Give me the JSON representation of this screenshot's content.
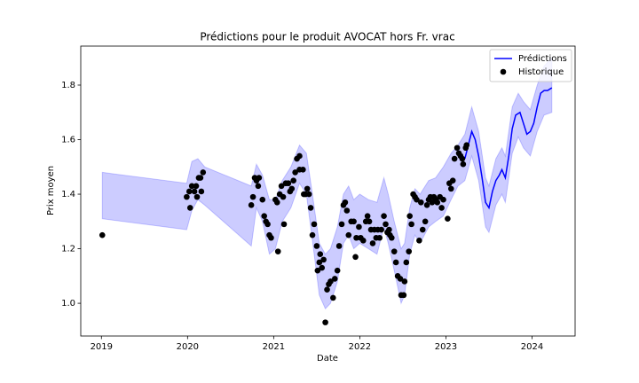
{
  "chart_data": {
    "type": "line",
    "title": "Prédictions pour le produit AVOCAT hors Fr. vrac",
    "xlabel": "Date",
    "ylabel": "Prix moyen",
    "xlim": [
      2018.76,
      2024.5
    ],
    "ylim": [
      0.88,
      1.943
    ],
    "xticks": [
      2019,
      2020,
      2021,
      2022,
      2023,
      2024
    ],
    "yticks": [
      {
        "value": 1,
        "label": "1.0"
      },
      1.2,
      1.4,
      1.6,
      1.8
    ],
    "grid": false,
    "legend": "upper right",
    "band": {
      "color": "#0000ff",
      "x": [
        2019.01,
        2019.99,
        2020.05,
        2020.12,
        2020.2,
        2020.74,
        2020.8,
        2020.87,
        2020.95,
        2021.02,
        2021.1,
        2021.2,
        2021.3,
        2021.38,
        2021.45,
        2021.53,
        2021.6,
        2021.66,
        2021.74,
        2021.81,
        2021.87,
        2021.93,
        2022.0,
        2022.1,
        2022.2,
        2022.28,
        2022.33,
        2022.4,
        2022.48,
        2022.52,
        2022.58,
        2022.64,
        2022.7,
        2022.8,
        2022.88,
        2022.97,
        2023.06,
        2023.14,
        2023.22,
        2023.3,
        2023.38,
        2023.46,
        2023.5,
        2023.58,
        2023.65,
        2023.69,
        2023.77,
        2023.84,
        2023.9,
        2023.98,
        2024.06,
        2024.14,
        2024.23
      ],
      "upper": [
        1.48,
        1.44,
        1.52,
        1.53,
        1.5,
        1.43,
        1.51,
        1.47,
        1.38,
        1.38,
        1.45,
        1.5,
        1.58,
        1.55,
        1.4,
        1.22,
        1.18,
        1.2,
        1.28,
        1.4,
        1.43,
        1.38,
        1.4,
        1.38,
        1.37,
        1.46,
        1.4,
        1.3,
        1.2,
        1.22,
        1.35,
        1.42,
        1.4,
        1.45,
        1.46,
        1.5,
        1.55,
        1.58,
        1.62,
        1.72,
        1.63,
        1.46,
        1.43,
        1.53,
        1.57,
        1.54,
        1.72,
        1.77,
        1.74,
        1.71,
        1.8,
        1.87,
        1.9
      ],
      "lower": [
        1.31,
        1.27,
        1.34,
        1.38,
        1.36,
        1.21,
        1.35,
        1.3,
        1.18,
        1.2,
        1.3,
        1.35,
        1.44,
        1.4,
        1.23,
        1.03,
        0.98,
        1.0,
        1.08,
        1.22,
        1.25,
        1.2,
        1.22,
        1.2,
        1.18,
        1.28,
        1.22,
        1.12,
        1.0,
        1.03,
        1.18,
        1.25,
        1.22,
        1.28,
        1.3,
        1.32,
        1.38,
        1.43,
        1.45,
        1.54,
        1.45,
        1.28,
        1.26,
        1.36,
        1.4,
        1.37,
        1.55,
        1.61,
        1.57,
        1.54,
        1.63,
        1.69,
        1.7
      ]
    },
    "series": [
      {
        "name": "Prédictions",
        "type": "line",
        "color": "#0000ff",
        "x": [
          2023.22,
          2023.26,
          2023.3,
          2023.34,
          2023.38,
          2023.42,
          2023.46,
          2023.5,
          2023.54,
          2023.58,
          2023.62,
          2023.65,
          2023.69,
          2023.73,
          2023.77,
          2023.81,
          2023.86,
          2023.9,
          2023.94,
          2023.98,
          2024.02,
          2024.06,
          2024.1,
          2024.14,
          2024.18,
          2024.23
        ],
        "values": [
          1.53,
          1.58,
          1.63,
          1.6,
          1.54,
          1.46,
          1.37,
          1.35,
          1.41,
          1.45,
          1.47,
          1.49,
          1.46,
          1.54,
          1.64,
          1.69,
          1.7,
          1.66,
          1.62,
          1.63,
          1.66,
          1.72,
          1.77,
          1.78,
          1.78,
          1.79
        ]
      },
      {
        "name": "Historique",
        "type": "scatter",
        "color": "#000000",
        "x": [
          2019.01,
          2019.99,
          2020.02,
          2020.03,
          2020.05,
          2020.08,
          2020.1,
          2020.11,
          2020.13,
          2020.15,
          2020.16,
          2020.18,
          2020.74,
          2020.76,
          2020.78,
          2020.8,
          2020.82,
          2020.83,
          2020.87,
          2020.89,
          2020.91,
          2020.93,
          2020.95,
          2020.97,
          2021.02,
          2021.04,
          2021.05,
          2021.07,
          2021.09,
          2021.11,
          2021.12,
          2021.14,
          2021.17,
          2021.19,
          2021.21,
          2021.23,
          2021.25,
          2021.27,
          2021.3,
          2021.3,
          2021.34,
          2021.35,
          2021.37,
          2021.39,
          2021.41,
          2021.43,
          2021.45,
          2021.47,
          2021.5,
          2021.51,
          2021.53,
          2021.54,
          2021.56,
          2021.58,
          2021.6,
          2021.62,
          2021.64,
          2021.66,
          2021.69,
          2021.71,
          2021.74,
          2021.76,
          2021.79,
          2021.81,
          2021.83,
          2021.85,
          2021.87,
          2021.9,
          2021.93,
          2021.95,
          2021.96,
          2021.99,
          2022.01,
          2022.04,
          2022.07,
          2022.09,
          2022.11,
          2022.13,
          2022.15,
          2022.17,
          2022.19,
          2022.21,
          2022.23,
          2022.25,
          2022.28,
          2022.3,
          2022.32,
          2022.34,
          2022.35,
          2022.37,
          2022.4,
          2022.42,
          2022.44,
          2022.47,
          2022.48,
          2022.51,
          2022.52,
          2022.54,
          2022.57,
          2022.58,
          2022.6,
          2022.62,
          2022.64,
          2022.66,
          2022.69,
          2022.71,
          2022.73,
          2022.76,
          2022.78,
          2022.8,
          2022.82,
          2022.84,
          2022.86,
          2022.88,
          2022.9,
          2022.93,
          2022.95,
          2022.97,
          2023.02,
          2023.04,
          2023.06,
          2023.08,
          2023.1,
          2023.13,
          2023.15,
          2023.17,
          2023.19,
          2023.2,
          2023.23,
          2023.24
        ],
        "values": [
          1.25,
          1.39,
          1.41,
          1.35,
          1.43,
          1.41,
          1.43,
          1.39,
          1.46,
          1.46,
          1.41,
          1.48,
          1.36,
          1.39,
          1.46,
          1.45,
          1.43,
          1.46,
          1.38,
          1.32,
          1.3,
          1.29,
          1.25,
          1.24,
          1.38,
          1.37,
          1.19,
          1.4,
          1.43,
          1.39,
          1.29,
          1.44,
          1.44,
          1.41,
          1.42,
          1.45,
          1.48,
          1.53,
          1.54,
          1.49,
          1.49,
          1.4,
          1.4,
          1.42,
          1.4,
          1.35,
          1.25,
          1.29,
          1.21,
          1.12,
          1.15,
          1.18,
          1.13,
          1.16,
          0.93,
          1.05,
          1.07,
          1.08,
          1.02,
          1.09,
          1.12,
          1.21,
          1.29,
          1.36,
          1.37,
          1.34,
          1.25,
          1.3,
          1.3,
          1.17,
          1.24,
          1.28,
          1.24,
          1.23,
          1.3,
          1.32,
          1.3,
          1.27,
          1.22,
          1.27,
          1.24,
          1.27,
          1.24,
          1.27,
          1.32,
          1.29,
          1.26,
          1.27,
          1.25,
          1.24,
          1.19,
          1.15,
          1.1,
          1.09,
          1.03,
          1.03,
          1.08,
          1.15,
          1.19,
          1.32,
          1.29,
          1.4,
          1.39,
          1.38,
          1.23,
          1.37,
          1.27,
          1.3,
          1.36,
          1.38,
          1.39,
          1.37,
          1.39,
          1.38,
          1.37,
          1.39,
          1.35,
          1.38,
          1.31,
          1.44,
          1.42,
          1.45,
          1.53,
          1.57,
          1.55,
          1.54,
          1.53,
          1.51,
          1.57,
          1.58
        ]
      }
    ]
  }
}
